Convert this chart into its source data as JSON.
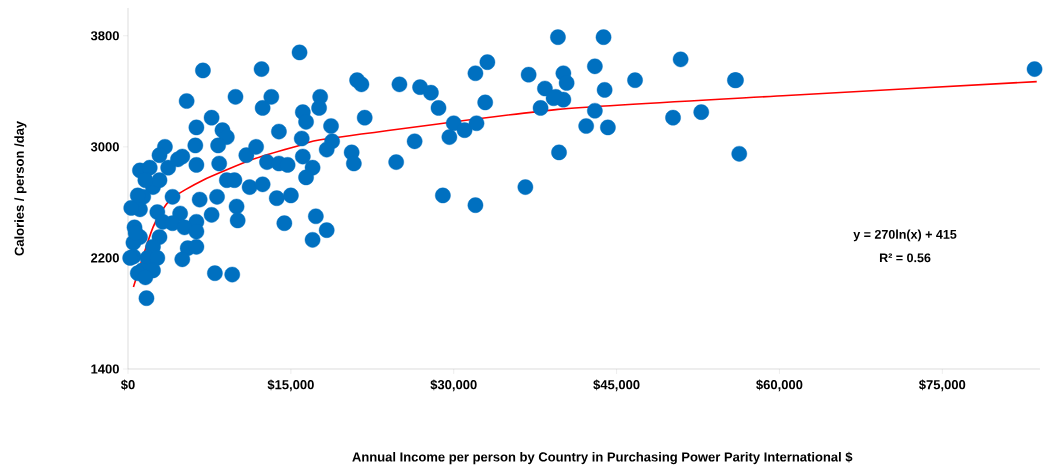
{
  "chart_data": {
    "type": "scatter",
    "xlabel": "Annual Income per person by Country in Purchasing Power Parity International $",
    "ylabel": "Calories / person /day",
    "xlim": [
      0,
      84000
    ],
    "ylim": [
      1400,
      4000
    ],
    "xticks": [
      {
        "value": 0,
        "label": "$0"
      },
      {
        "value": 15000,
        "label": "$15,000"
      },
      {
        "value": 30000,
        "label": "$30,000"
      },
      {
        "value": 45000,
        "label": "$45,000"
      },
      {
        "value": 60000,
        "label": "$60,000"
      },
      {
        "value": 75000,
        "label": "$75,000"
      }
    ],
    "yticks": [
      1400,
      2200,
      3000,
      3800
    ],
    "grid": false,
    "marker": "circle",
    "annotations": [
      "y = 270ln(x) + 415",
      "R² = 0.56"
    ],
    "series": [
      {
        "color": "#0070c0",
        "x": [
          83500,
          56000,
          56300,
          50900,
          43000,
          40100,
          40400,
          46700,
          55900,
          38400,
          43900,
          39400,
          40100,
          38000,
          43000,
          52800,
          50200,
          42200,
          44200,
          39700,
          39600,
          43800,
          15800,
          21100,
          21500,
          25000,
          26900,
          27900,
          28600,
          17700,
          17600,
          16100,
          16400,
          18700,
          18800,
          18300,
          16000,
          16100,
          17000,
          16400,
          20600,
          20800,
          21800,
          24700,
          26400,
          30000,
          29600,
          31000,
          32100,
          32900,
          32000,
          33100,
          36900,
          39200,
          36600,
          29000,
          32000,
          17300,
          18300,
          17000,
          6900,
          12300,
          5400,
          9900,
          13200,
          12400,
          7700,
          6300,
          8700,
          9100,
          13900,
          3400,
          6200,
          8300,
          5000,
          1100,
          2000,
          3700,
          6300,
          8400,
          10900,
          11800,
          12800,
          13900,
          14700,
          9100,
          9800,
          11200,
          12400,
          13700,
          15000,
          2300,
          1400,
          4100,
          6600,
          8200,
          10000,
          10100,
          1100,
          2700,
          4800,
          3200,
          4100,
          7700,
          6300,
          5200,
          6300,
          14400,
          1100,
          2900,
          2300,
          5500,
          6300,
          5000,
          500,
          1800,
          2700,
          1300,
          2300,
          8000,
          9600,
          1700,
          900,
          1600,
          500,
          600,
          300,
          700,
          900,
          1600,
          2900,
          2900,
          4600,
          200
        ],
        "values": [
          3560,
          3480,
          2950,
          3630,
          3580,
          3530,
          3460,
          3480,
          3480,
          3420,
          3410,
          3360,
          3340,
          3280,
          3260,
          3250,
          3210,
          3150,
          3140,
          2960,
          3790,
          3790,
          3680,
          3480,
          3450,
          3450,
          3430,
          3390,
          3280,
          3360,
          3280,
          3250,
          3180,
          3150,
          3040,
          2980,
          3060,
          2930,
          2850,
          2780,
          2960,
          2880,
          3210,
          2890,
          3040,
          3170,
          3070,
          3120,
          3170,
          3320,
          3530,
          3610,
          3520,
          3350,
          2710,
          2650,
          2580,
          2500,
          2400,
          2330,
          3550,
          3560,
          3330,
          3360,
          3360,
          3280,
          3210,
          3140,
          3120,
          3070,
          3110,
          3000,
          3010,
          3010,
          2930,
          2830,
          2850,
          2850,
          2870,
          2880,
          2940,
          3000,
          2890,
          2880,
          2870,
          2760,
          2760,
          2710,
          2730,
          2630,
          2650,
          2710,
          2640,
          2640,
          2620,
          2640,
          2570,
          2470,
          2550,
          2530,
          2520,
          2460,
          2450,
          2510,
          2460,
          2420,
          2390,
          2450,
          2350,
          2350,
          2280,
          2270,
          2280,
          2190,
          2210,
          2200,
          2200,
          2110,
          2110,
          2090,
          2080,
          1910,
          2090,
          2060,
          2310,
          2420,
          2560,
          2380,
          2650,
          2760,
          2760,
          2940,
          2910,
          2200
        ]
      },
      {
        "type": "line",
        "color": "#ff0000",
        "marker": "none",
        "x": [
          500,
          2300,
          3900,
          6900,
          11500,
          15800,
          18500,
          39600,
          60700,
          83700
        ],
        "values": [
          1990,
          2420,
          2620,
          2760,
          2910,
          3010,
          3060,
          3270,
          3370,
          3470
        ]
      }
    ]
  }
}
